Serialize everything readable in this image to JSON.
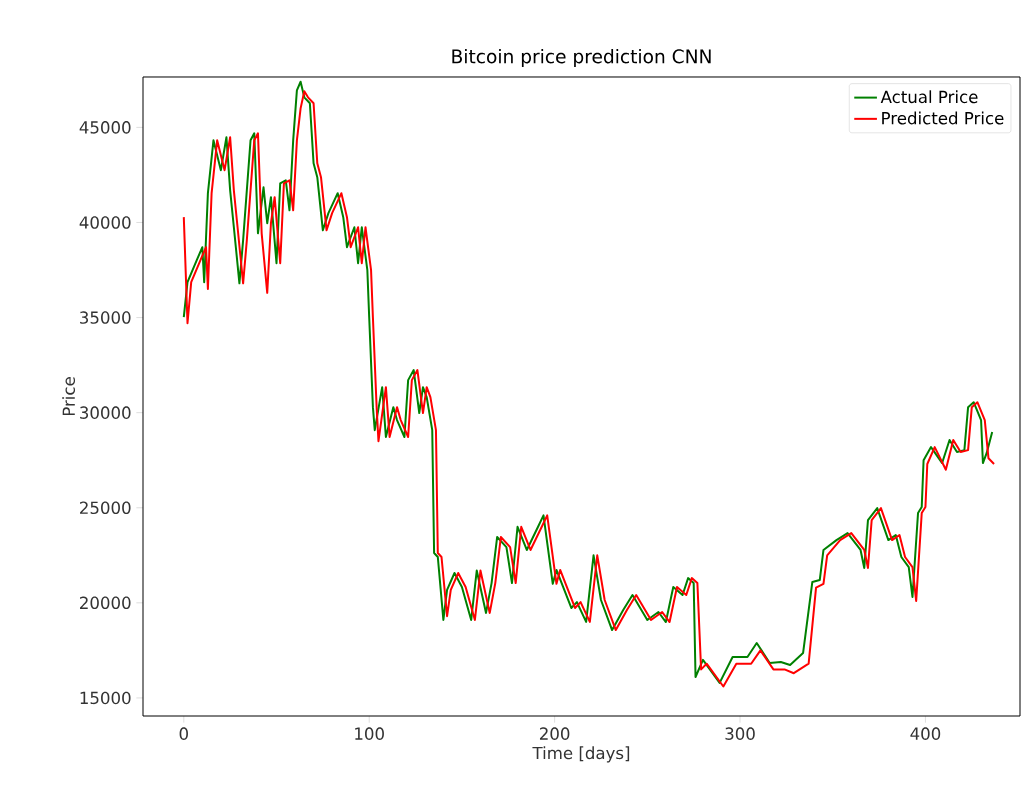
{
  "chart_data": {
    "type": "line",
    "title": "Bitcoin price prediction CNN",
    "xlabel": "Time [days]",
    "ylabel": "Price",
    "xlim": [
      -22,
      451
    ],
    "ylim": [
      14050,
      47650
    ],
    "xticks": [
      0,
      100,
      200,
      300,
      400
    ],
    "yticks": [
      15000,
      20000,
      25000,
      30000,
      35000,
      40000,
      45000
    ],
    "legend": "top right",
    "series": [
      {
        "name": "Actual Price",
        "color": "#008000",
        "x": [
          0,
          2,
          7,
          10,
          11,
          13,
          16,
          20,
          23,
          25,
          27,
          30,
          32,
          36,
          38,
          40,
          43,
          45,
          47,
          50,
          52,
          55,
          57,
          59,
          61,
          63,
          65,
          68,
          70,
          72,
          75,
          78,
          83,
          86,
          88,
          92,
          94,
          96,
          99,
          100,
          102,
          103,
          107,
          109,
          113,
          115,
          119,
          121,
          124,
          127,
          129,
          131,
          134,
          135,
          137,
          140,
          142,
          146,
          150,
          155,
          158,
          163,
          166,
          169,
          174,
          177,
          180,
          185,
          191,
          194,
          199,
          201,
          209,
          212,
          217,
          221,
          225,
          231,
          237,
          242,
          250,
          256,
          260,
          264,
          269,
          272,
          275,
          276,
          280,
          289,
          296,
          304,
          309,
          316,
          322,
          327,
          334,
          339,
          343,
          345,
          352,
          358,
          365,
          367,
          369,
          374,
          380,
          384,
          387,
          391,
          393,
          396,
          398,
          399,
          403,
          409,
          413,
          417,
          421,
          423,
          426,
          430,
          431,
          433,
          436
        ],
        "values": [
          35020,
          36860,
          38020,
          38700,
          36860,
          41540,
          44320,
          42750,
          44480,
          41690,
          39750,
          36800,
          39070,
          44320,
          44690,
          39430,
          41850,
          39960,
          41330,
          37860,
          42060,
          42220,
          40640,
          44320,
          46950,
          47400,
          46580,
          46270,
          43110,
          42380,
          39590,
          40490,
          41540,
          40280,
          38700,
          39750,
          37860,
          39750,
          37490,
          35000,
          30290,
          29080,
          31340,
          28720,
          30290,
          29610,
          28720,
          31710,
          32240,
          29980,
          31340,
          30820,
          29080,
          22620,
          22410,
          19100,
          20680,
          21570,
          20830,
          19100,
          21700,
          19470,
          21040,
          23460,
          22930,
          21040,
          24000,
          22780,
          23990,
          24600,
          21000,
          21730,
          19730,
          20040,
          19000,
          22500,
          20150,
          18570,
          19620,
          20410,
          19100,
          19520,
          18990,
          20830,
          20410,
          21300,
          21040,
          16100,
          17000,
          15790,
          17150,
          17150,
          17890,
          16840,
          16890,
          16730,
          17360,
          21100,
          21200,
          22780,
          23300,
          23670,
          22780,
          21830,
          24350,
          24980,
          23300,
          23570,
          22410,
          21880,
          20310,
          24720,
          25040,
          27500,
          28190,
          27350,
          28560,
          27930,
          28030,
          30290,
          30550,
          29610,
          27350,
          27870,
          28980
        ]
      },
      {
        "name": "Predicted Price",
        "color": "#ff0000",
        "x": [
          0,
          2,
          4,
          9,
          12,
          13,
          15,
          18,
          22,
          25,
          27,
          29,
          32,
          34,
          38,
          40,
          42,
          45,
          47,
          49,
          52,
          54,
          57,
          59,
          61,
          63,
          65,
          67,
          70,
          72,
          74,
          77,
          80,
          85,
          88,
          90,
          94,
          96,
          98,
          101,
          102,
          104,
          105,
          109,
          111,
          115,
          117,
          121,
          123,
          126,
          129,
          131,
          133,
          136,
          137,
          139,
          142,
          144,
          148,
          152,
          157,
          160,
          165,
          168,
          171,
          176,
          179,
          182,
          187,
          193,
          196,
          201,
          203,
          211,
          214,
          219,
          223,
          227,
          233,
          239,
          244,
          252,
          258,
          262,
          266,
          271,
          274,
          277,
          279,
          282,
          291,
          298,
          306,
          311,
          318,
          324,
          329,
          337,
          341,
          345,
          347,
          354,
          360,
          367,
          369,
          371,
          376,
          382,
          386,
          389,
          393,
          395,
          398,
          400,
          401,
          405,
          411,
          415,
          419,
          423,
          425,
          428,
          432,
          434,
          437
        ],
        "values": [
          40280,
          34700,
          36860,
          38020,
          38700,
          36500,
          41540,
          44320,
          42750,
          44480,
          41690,
          39750,
          36800,
          39070,
          44320,
          44690,
          39430,
          36300,
          39960,
          41330,
          37860,
          42060,
          42220,
          40640,
          44320,
          46000,
          46900,
          46580,
          46270,
          43110,
          42380,
          39590,
          40490,
          41540,
          40280,
          38700,
          39750,
          37860,
          39750,
          37490,
          35000,
          30290,
          28500,
          31340,
          28720,
          30290,
          29610,
          28720,
          31710,
          32240,
          29980,
          31340,
          30820,
          29080,
          22620,
          22410,
          19300,
          20680,
          21570,
          20830,
          19100,
          21700,
          19470,
          21040,
          23460,
          22930,
          21040,
          24000,
          22780,
          23990,
          24600,
          21000,
          21730,
          19730,
          20040,
          19000,
          22500,
          20150,
          18570,
          19620,
          20410,
          19100,
          19520,
          18990,
          20830,
          20410,
          21300,
          21040,
          16500,
          16800,
          15600,
          16800,
          16800,
          17500,
          16500,
          16500,
          16300,
          16800,
          20800,
          21000,
          22500,
          23300,
          23670,
          22780,
          21830,
          24350,
          24980,
          23300,
          23570,
          22410,
          21880,
          20100,
          24720,
          25040,
          27300,
          28190,
          27000,
          28560,
          27930,
          28030,
          30290,
          30550,
          29610,
          27600,
          27300
        ]
      }
    ]
  }
}
